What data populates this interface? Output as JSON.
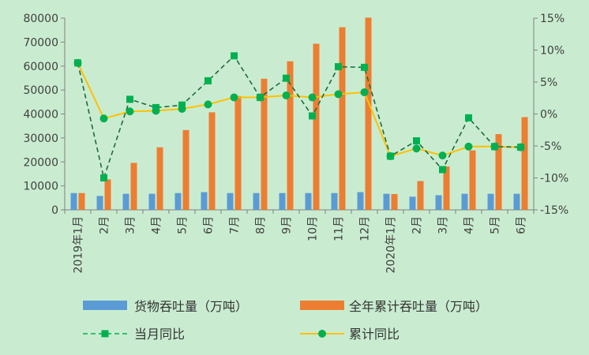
{
  "chart_data": {
    "type": "bar",
    "categories": [
      "2019年1月",
      "2月",
      "3月",
      "4月",
      "5月",
      "6月",
      "7月",
      "8月",
      "9月",
      "10月",
      "11月",
      "12月",
      "2020年1月",
      "2月",
      "3月",
      "4月",
      "5月",
      "6月"
    ],
    "series": [
      {
        "name": "货物吞吐量（万吨）",
        "type": "bar",
        "axis": "left",
        "color": "#5b9bd5",
        "values": [
          7000,
          5800,
          6700,
          6700,
          7000,
          7400,
          7000,
          7000,
          7000,
          7000,
          7000,
          7400,
          6700,
          5500,
          6100,
          6700,
          6700,
          6700
        ]
      },
      {
        "name": "全年累计吞吐量（万吨）",
        "type": "bar",
        "axis": "left",
        "color": "#ed7d31",
        "values": [
          7000,
          12700,
          19600,
          26100,
          33300,
          40700,
          47500,
          54700,
          62000,
          69300,
          76200,
          80200,
          6600,
          12000,
          18100,
          24800,
          31600,
          38700
        ]
      },
      {
        "name": "当月同比",
        "type": "line",
        "axis": "right",
        "color": "#00b050",
        "style": "dashed",
        "marker": "square",
        "values": [
          8.0,
          -10.0,
          2.3,
          1.0,
          1.4,
          5.2,
          9.1,
          2.6,
          5.6,
          -0.3,
          7.4,
          7.3,
          -6.6,
          -4.2,
          -8.7,
          -0.6,
          -5.1,
          -5.2
        ]
      },
      {
        "name": "累计同比",
        "type": "line",
        "axis": "right",
        "color": "#ffc000",
        "style": "solid",
        "marker": "circle",
        "values": [
          8.0,
          -0.7,
          0.4,
          0.5,
          0.8,
          1.5,
          2.6,
          2.6,
          2.9,
          2.6,
          3.1,
          3.4,
          -6.6,
          -5.4,
          -6.5,
          -5.1,
          -5.1,
          -5.2
        ]
      }
    ],
    "y_left": {
      "min": 0,
      "max": 80000,
      "ticks": [
        "0",
        "10000",
        "20000",
        "30000",
        "40000",
        "50000",
        "60000",
        "70000",
        "80000"
      ]
    },
    "y_right": {
      "min": -15,
      "max": 15,
      "ticks": [
        "-15%",
        "-10%",
        "-5%",
        "0%",
        "5%",
        "10%",
        "15%"
      ]
    },
    "grid": false,
    "legend_position": "bottom"
  }
}
